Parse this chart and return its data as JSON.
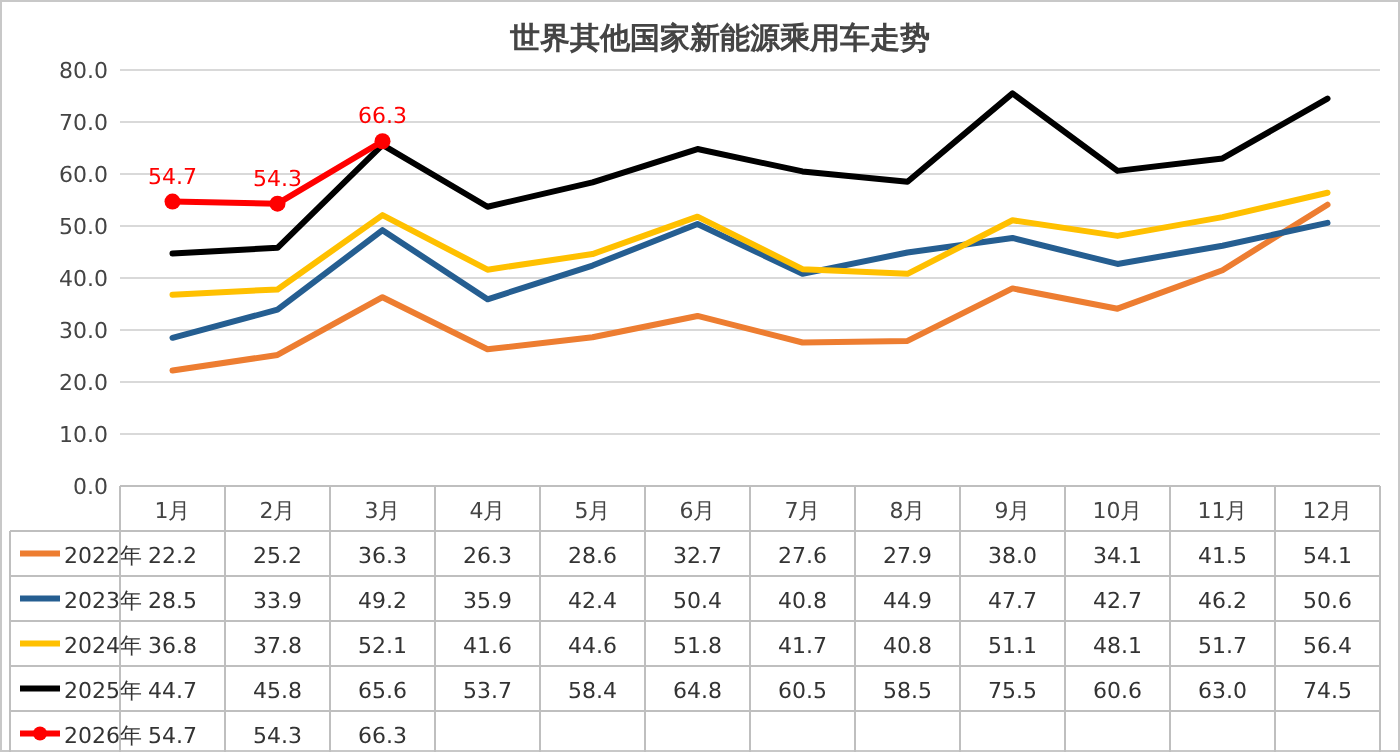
{
  "chart_data": {
    "type": "line",
    "title": "世界其他国家新能源乘用车走势",
    "categories": [
      "1月",
      "2月",
      "3月",
      "4月",
      "5月",
      "6月",
      "7月",
      "8月",
      "9月",
      "10月",
      "11月",
      "12月"
    ],
    "series": [
      {
        "name": "2022年",
        "color": "#ed7d31",
        "marker": "none",
        "values": [
          22.2,
          25.2,
          36.3,
          26.3,
          28.6,
          32.7,
          27.6,
          27.9,
          38.0,
          34.1,
          41.5,
          54.1
        ],
        "value_labels": [
          "22.2",
          "25.2",
          "36.3",
          "26.3",
          "28.6",
          "32.7",
          "27.6",
          "27.9",
          "38.0",
          "34.1",
          "41.5",
          "54.1"
        ]
      },
      {
        "name": "2023年",
        "color": "#255e91",
        "marker": "none",
        "values": [
          28.5,
          33.9,
          49.2,
          35.9,
          42.4,
          50.4,
          40.8,
          44.9,
          47.7,
          42.7,
          46.2,
          50.6
        ],
        "value_labels": [
          "28.5",
          "33.9",
          "49.2",
          "35.9",
          "42.4",
          "50.4",
          "40.8",
          "44.9",
          "47.7",
          "42.7",
          "46.2",
          "50.6"
        ]
      },
      {
        "name": "2024年",
        "color": "#ffc000",
        "marker": "none",
        "values": [
          36.8,
          37.8,
          52.1,
          41.6,
          44.6,
          51.8,
          41.7,
          40.8,
          51.1,
          48.1,
          51.7,
          56.4
        ],
        "value_labels": [
          "36.8",
          "37.8",
          "52.1",
          "41.6",
          "44.6",
          "51.8",
          "41.7",
          "40.8",
          "51.1",
          "48.1",
          "51.7",
          "56.4"
        ]
      },
      {
        "name": "2025年",
        "color": "#000000",
        "marker": "none",
        "values": [
          44.7,
          45.8,
          65.6,
          53.7,
          58.4,
          64.8,
          60.5,
          58.5,
          75.5,
          60.6,
          63.0,
          74.5
        ],
        "value_labels": [
          "44.7",
          "45.8",
          "65.6",
          "53.7",
          "58.4",
          "64.8",
          "60.5",
          "58.5",
          "75.5",
          "60.6",
          "63.0",
          "74.5"
        ]
      },
      {
        "name": "2026年",
        "color": "#ff0000",
        "marker": "circle",
        "values": [
          54.7,
          54.3,
          66.3,
          null,
          null,
          null,
          null,
          null,
          null,
          null,
          null,
          null
        ],
        "value_labels": [
          "54.7",
          "54.3",
          "66.3",
          null,
          null,
          null,
          null,
          null,
          null,
          null,
          null,
          null
        ]
      }
    ],
    "ylim": [
      0,
      80
    ],
    "yticks": [
      {
        "value": 0,
        "label": "0.0"
      },
      {
        "value": 10,
        "label": "10.0"
      },
      {
        "value": 20,
        "label": "20.0"
      },
      {
        "value": 30,
        "label": "30.0"
      },
      {
        "value": 40,
        "label": "40.0"
      },
      {
        "value": 50,
        "label": "50.0"
      },
      {
        "value": 60,
        "label": "60.0"
      },
      {
        "value": 70,
        "label": "70.0"
      },
      {
        "value": 80,
        "label": "80.0"
      }
    ],
    "grid": "y",
    "legend": "bottom",
    "line_style": "solid"
  }
}
